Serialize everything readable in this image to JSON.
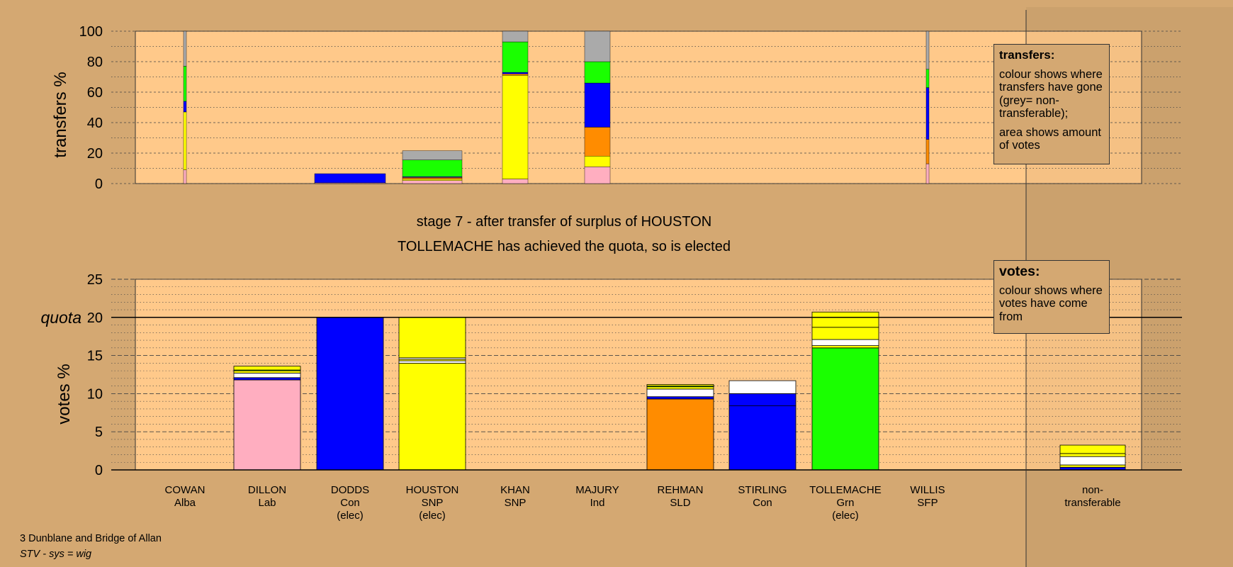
{
  "caption": {
    "stage": "stage 7 - after transfer of surplus of HOUSTON",
    "outcome": "TOLLEMACHE has achieved the quota, so is elected"
  },
  "legends": {
    "transfers": {
      "title": "transfers:",
      "line1": "colour shows where transfers have gone (grey= non-transferable);",
      "line2": "area shows amount of votes"
    },
    "votes": {
      "title": "votes:",
      "line1": "colour shows where votes have come from"
    }
  },
  "footer": {
    "ward": "3 Dunblane and Bridge of Allan",
    "system": "STV - sys = wig"
  },
  "colors": {
    "background": "#d4a872",
    "plot_area": "#ffc98a",
    "Lab": "#ffaec0",
    "Con": "#0000ff",
    "SNP": "#ffff00",
    "SLD": "#ff8c00",
    "Grn": "#1aff00",
    "Ind": "#ffffff",
    "Alba": "#ffffff",
    "SFP": "#ffffff",
    "non-transferable": "#aaaaaa"
  },
  "chart_data": [
    {
      "type": "bar",
      "stacked": true,
      "ylabel": "transfers %",
      "ylim": [
        0,
        100
      ],
      "yticks": [
        "0",
        "20",
        "40",
        "60",
        "80",
        "100"
      ],
      "categories": [
        "COWAN",
        "DILLON",
        "DODDS",
        "HOUSTON",
        "KHAN",
        "MAJURY",
        "REHMAN",
        "STIRLING",
        "TOLLEMACHE",
        "WILLIS"
      ],
      "bars": [
        {
          "candidate": "COWAN",
          "width": "thin",
          "segments": [
            {
              "to": "Lab",
              "value": 9
            },
            {
              "to": "SNP",
              "value": 38
            },
            {
              "to": "Con",
              "value": 7
            },
            {
              "to": "Grn",
              "value": 23
            },
            {
              "to": "non-transferable",
              "value": 23
            }
          ]
        },
        {
          "candidate": "DODDS",
          "width": "narrow",
          "segments": [
            {
              "to": "Lab",
              "value": 0.5
            },
            {
              "to": "Con",
              "value": 6
            }
          ]
        },
        {
          "candidate": "DILLON_DODDS_area",
          "skip": true
        },
        {
          "candidate": "HOUSTON",
          "width": "narrow",
          "segments": [
            {
              "to": "Lab",
              "value": 2
            },
            {
              "to": "SNP",
              "value": 1
            },
            {
              "to": "SLD",
              "value": 1
            },
            {
              "to": "Con",
              "value": 0.5
            },
            {
              "to": "Grn",
              "value": 11
            },
            {
              "to": "non-transferable",
              "value": 6
            }
          ]
        },
        {
          "candidate": "KHAN",
          "width": "full",
          "segments": [
            {
              "to": "Lab",
              "value": 3
            },
            {
              "to": "SNP",
              "value": 68
            },
            {
              "to": "SLD",
              "value": 1
            },
            {
              "to": "Con",
              "value": 1
            },
            {
              "to": "Grn",
              "value": 20
            },
            {
              "to": "non-transferable",
              "value": 7
            }
          ]
        },
        {
          "candidate": "MAJURY",
          "width": "full",
          "segments": [
            {
              "to": "Lab",
              "value": 11
            },
            {
              "to": "SNP",
              "value": 7
            },
            {
              "to": "SLD",
              "value": 19
            },
            {
              "to": "Con",
              "value": 29
            },
            {
              "to": "Grn",
              "value": 14
            },
            {
              "to": "non-transferable",
              "value": 20
            }
          ]
        },
        {
          "candidate": "WILLIS",
          "width": "thin",
          "segments": [
            {
              "to": "Lab",
              "value": 13
            },
            {
              "to": "SLD",
              "value": 16
            },
            {
              "to": "Con",
              "value": 34
            },
            {
              "to": "Grn",
              "value": 12
            },
            {
              "to": "non-transferable",
              "value": 25
            }
          ]
        }
      ]
    },
    {
      "type": "bar",
      "stacked": true,
      "ylabel": "votes %",
      "ylim": [
        0,
        25
      ],
      "yticks": [
        "0",
        "5",
        "10",
        "15",
        "20",
        "25"
      ],
      "quota": 20,
      "quota_label": "quota",
      "categories": [
        {
          "name": "COWAN",
          "party": "Alba",
          "note": ""
        },
        {
          "name": "DILLON",
          "party": "Lab",
          "note": ""
        },
        {
          "name": "DODDS",
          "party": "Con",
          "note": "(elec)"
        },
        {
          "name": "HOUSTON",
          "party": "SNP",
          "note": "(elec)"
        },
        {
          "name": "KHAN",
          "party": "SNP",
          "note": ""
        },
        {
          "name": "MAJURY",
          "party": "Ind",
          "note": ""
        },
        {
          "name": "REHMAN",
          "party": "SLD",
          "note": ""
        },
        {
          "name": "STIRLING",
          "party": "Con",
          "note": ""
        },
        {
          "name": "TOLLEMACHE",
          "party": "Grn",
          "note": "(elec)"
        },
        {
          "name": "WILLIS",
          "party": "SFP",
          "note": ""
        },
        {
          "name": "non-",
          "party": "transferable",
          "note": ""
        }
      ],
      "bars": [
        {
          "candidate": "DILLON",
          "segments": [
            {
              "from": "Lab",
              "value": 11.8
            },
            {
              "from": "Con",
              "value": 0.3
            },
            {
              "from": "Ind",
              "value": 0.6
            },
            {
              "from": "SNP",
              "value": 0.3
            },
            {
              "from": "Grn",
              "value": 0.1
            },
            {
              "from": "SNP",
              "value": 0.5
            }
          ]
        },
        {
          "candidate": "DODDS",
          "segments": [
            {
              "from": "Con",
              "value": 20.0
            }
          ]
        },
        {
          "candidate": "HOUSTON",
          "segments": [
            {
              "from": "SNP",
              "value": 14.0
            },
            {
              "from": "Alba",
              "value": 0.3
            },
            {
              "from": "SNP",
              "value": 0.2
            },
            {
              "from": "Ind",
              "value": 0.2
            },
            {
              "from": "SNP",
              "value": 5.3
            }
          ]
        },
        {
          "candidate": "REHMAN",
          "segments": [
            {
              "from": "SLD",
              "value": 9.3
            },
            {
              "from": "Con",
              "value": 0.3
            },
            {
              "from": "Ind",
              "value": 1.0
            },
            {
              "from": "SNP",
              "value": 0.3
            },
            {
              "from": "Grn",
              "value": 0.1
            },
            {
              "from": "SNP",
              "value": 0.2
            }
          ]
        },
        {
          "candidate": "STIRLING",
          "segments": [
            {
              "from": "Con",
              "value": 8.4
            },
            {
              "from": "Con",
              "value": 1.6
            },
            {
              "from": "Ind",
              "value": 1.7
            }
          ]
        },
        {
          "candidate": "TOLLEMACHE",
          "segments": [
            {
              "from": "Grn",
              "value": 16.0
            },
            {
              "from": "SNP",
              "value": 0.3
            },
            {
              "from": "Ind",
              "value": 0.8
            },
            {
              "from": "SNP",
              "value": 1.6
            },
            {
              "from": "SNP",
              "value": 2.0
            }
          ]
        },
        {
          "candidate": "non-transferable",
          "segments": [
            {
              "from": "Con",
              "value": 0.35
            },
            {
              "from": "SNP",
              "value": 0.3
            },
            {
              "from": "Ind",
              "value": 1.1
            },
            {
              "from": "SNP",
              "value": 0.4
            },
            {
              "from": "SNP",
              "value": 1.1
            }
          ]
        }
      ]
    }
  ]
}
